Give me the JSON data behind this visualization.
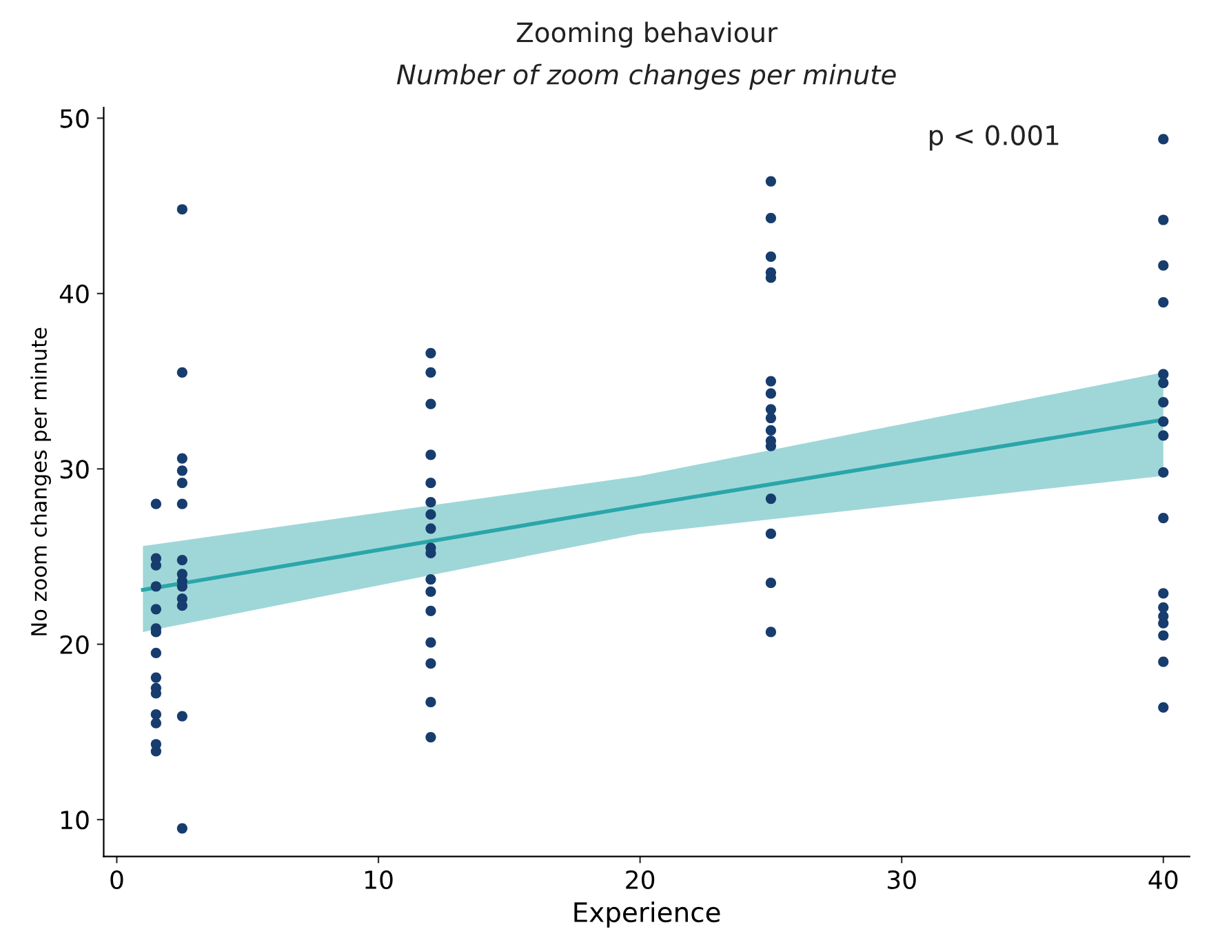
{
  "chart_data": {
    "type": "scatter",
    "title": "Zooming behaviour",
    "subtitle": "Number of zoom changes per minute",
    "xlabel": "Experience",
    "ylabel": "No zoom changes per minute",
    "annotations": [
      "p < 0.001"
    ],
    "xlim": [
      -0.5,
      41
    ],
    "ylim": [
      7.9,
      50.6
    ],
    "xticks": [
      0,
      10,
      20,
      30,
      40
    ],
    "yticks": [
      10,
      20,
      30,
      40,
      50
    ],
    "grid": false,
    "legend": false,
    "series": [
      {
        "marker": "circle",
        "color": "#173c6e",
        "x": [
          1.5,
          1.5,
          1.5,
          1.5,
          1.5,
          1.5,
          1.5,
          1.5,
          1.5,
          1.5,
          1.5,
          1.5,
          1.5,
          1.5,
          1.5,
          2.5,
          2.5,
          2.5,
          2.5,
          2.5,
          2.5,
          2.5,
          2.5,
          2.5,
          2.5,
          2.5,
          2.5,
          2.5,
          2.5,
          12,
          12,
          12,
          12,
          12,
          12,
          12,
          12,
          12,
          12,
          12,
          12,
          12,
          12,
          12,
          12,
          12,
          25,
          25,
          25,
          25,
          25,
          25,
          25,
          25,
          25,
          25,
          25,
          25,
          25,
          25,
          25,
          25,
          40,
          40,
          40,
          40,
          40,
          40,
          40,
          40,
          40,
          40,
          40,
          40,
          40,
          40,
          40,
          40,
          40,
          40
        ],
        "values": [
          28.0,
          24.9,
          24.5,
          23.3,
          22.0,
          20.9,
          20.7,
          19.5,
          18.1,
          17.5,
          17.2,
          16.0,
          15.5,
          14.3,
          13.9,
          44.8,
          35.5,
          30.6,
          29.9,
          29.2,
          28.0,
          24.8,
          24.0,
          23.6,
          23.3,
          22.6,
          22.2,
          15.9,
          9.5,
          36.6,
          35.5,
          33.7,
          30.8,
          29.2,
          28.1,
          27.4,
          26.6,
          25.5,
          25.2,
          23.7,
          23.0,
          21.9,
          20.1,
          18.9,
          16.7,
          14.7,
          46.4,
          44.3,
          42.1,
          41.2,
          40.9,
          35.0,
          34.3,
          33.4,
          32.9,
          32.2,
          31.6,
          31.3,
          28.3,
          26.3,
          23.5,
          20.7,
          48.8,
          44.2,
          41.6,
          39.5,
          35.4,
          34.9,
          33.8,
          32.7,
          31.9,
          29.8,
          27.2,
          22.9,
          22.1,
          21.6,
          21.2,
          20.5,
          19.0,
          16.4
        ]
      },
      {
        "type": "line",
        "color": "#2aa6a9",
        "x": [
          1,
          20,
          40
        ],
        "values": [
          23.1,
          27.9,
          32.8
        ],
        "lower": [
          20.7,
          26.3,
          29.6
        ],
        "upper": [
          25.6,
          29.6,
          35.5
        ]
      }
    ]
  }
}
